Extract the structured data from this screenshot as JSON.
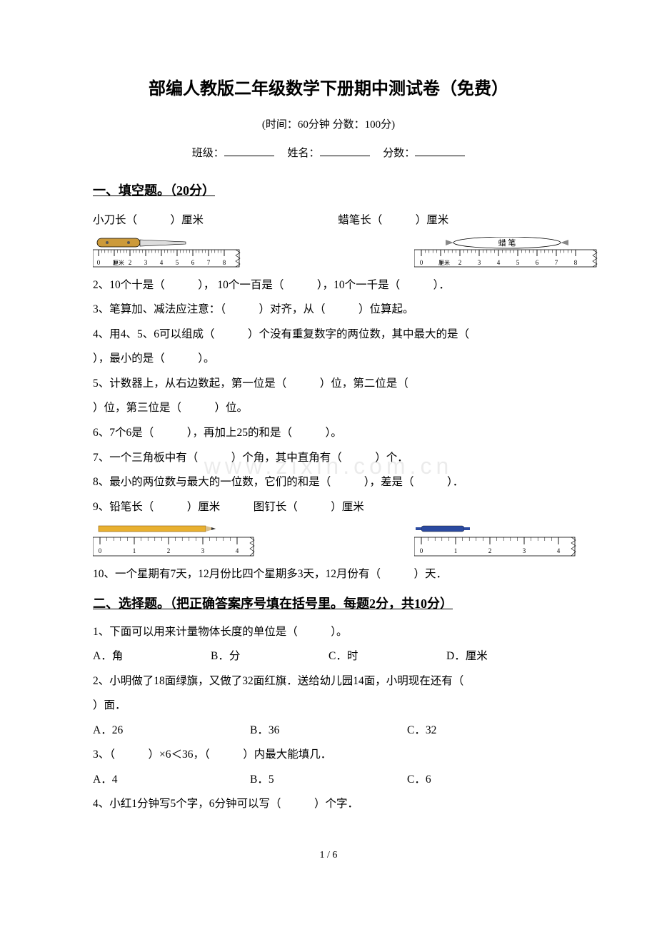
{
  "title": "部编人教版二年级数学下册期中测试卷（免费）",
  "subtitle": "(时间：60分钟   分数：100分)",
  "meta": {
    "class_label": "班级：",
    "name_label": "姓名：",
    "score_label": "分数："
  },
  "section1": {
    "header": "一、填空题。（20分）",
    "q1_left": "小刀长（　　　）厘米",
    "q1_right": "蜡笔长（　　　）厘米",
    "ruler_ticks": [
      "0",
      "1",
      "2",
      "3",
      "4",
      "5",
      "6",
      "7",
      "8"
    ],
    "ruler_unit": "厘米",
    "crayon_label": "蜡  笔",
    "q2": "2、10个十是（　　　），  10个一百是（　　　），10个一千是（　　　）．",
    "q3": "3、笔算加、减法应注意：（　　　）对齐，从（　　　）位算起。",
    "q4a": "4、用4、5、6可以组成（　　　）个没有重复数字的两位数，其中最大的是（",
    "q4b": "），最小的是（　　　）。",
    "q5a": "5、计数器上，从右边数起，第一位是（　　　）位，第二位是（",
    "q5b": "）位，第三位是（　　　）位。",
    "q6": "6、7个6是（　　　），再加上25的和是（　　　）。",
    "q7": "7、一个三角板中有（　　　）个角，其中直角有（　　　）个．",
    "q8": "8、最小的两位数与最大的一位数，它们的和是（　　　），差是（　　　）．",
    "q9": "9、铅笔长（　　　）厘米　　　图钉长（　　　）厘米",
    "pencil_ruler_ticks": [
      "0",
      "1",
      "2",
      "3",
      "4"
    ],
    "q10": "10、一个星期有7天，12月份比四个星期多3天，12月份有（　　　）天．"
  },
  "section2": {
    "header": "二、选择题。（把正确答案序号填在括号里。每题2分，共10分）",
    "q1": "1、下面可以用来计量物体长度的单位是（　　　）。",
    "q1a": "A．角",
    "q1b": "B．分",
    "q1c": "C．时",
    "q1d": "D．厘米",
    "q2a": "2、小明做了18面绿旗，又做了32面红旗．送给幼儿园14面，小明现在还有（",
    "q2b": "）面．",
    "q2oa": "A．26",
    "q2ob": "B．36",
    "q2oc": "C．32",
    "q3": "3、（　　　）×6＜36，（　　　）内最大能填几．",
    "q3a": "A．4",
    "q3b": "B．5",
    "q3c": "C．6",
    "q4": "4、小红1分钟写5个字，6分钟可以写（　　　）个字．"
  },
  "watermark": "www.zixin.com.cn",
  "page": "1 / 6",
  "colors": {
    "text": "#000000",
    "knife_handle": "#cc9a3a",
    "knife_blade": "#cccccc",
    "crayon_body": "#888888",
    "crayon_label_bg": "#ffffff",
    "pencil_body": "#e8b030",
    "pencil_tip": "#333333",
    "tack_body": "#2b4aa0",
    "ruler_bg": "#ffffff",
    "ruler_line": "#000000"
  }
}
